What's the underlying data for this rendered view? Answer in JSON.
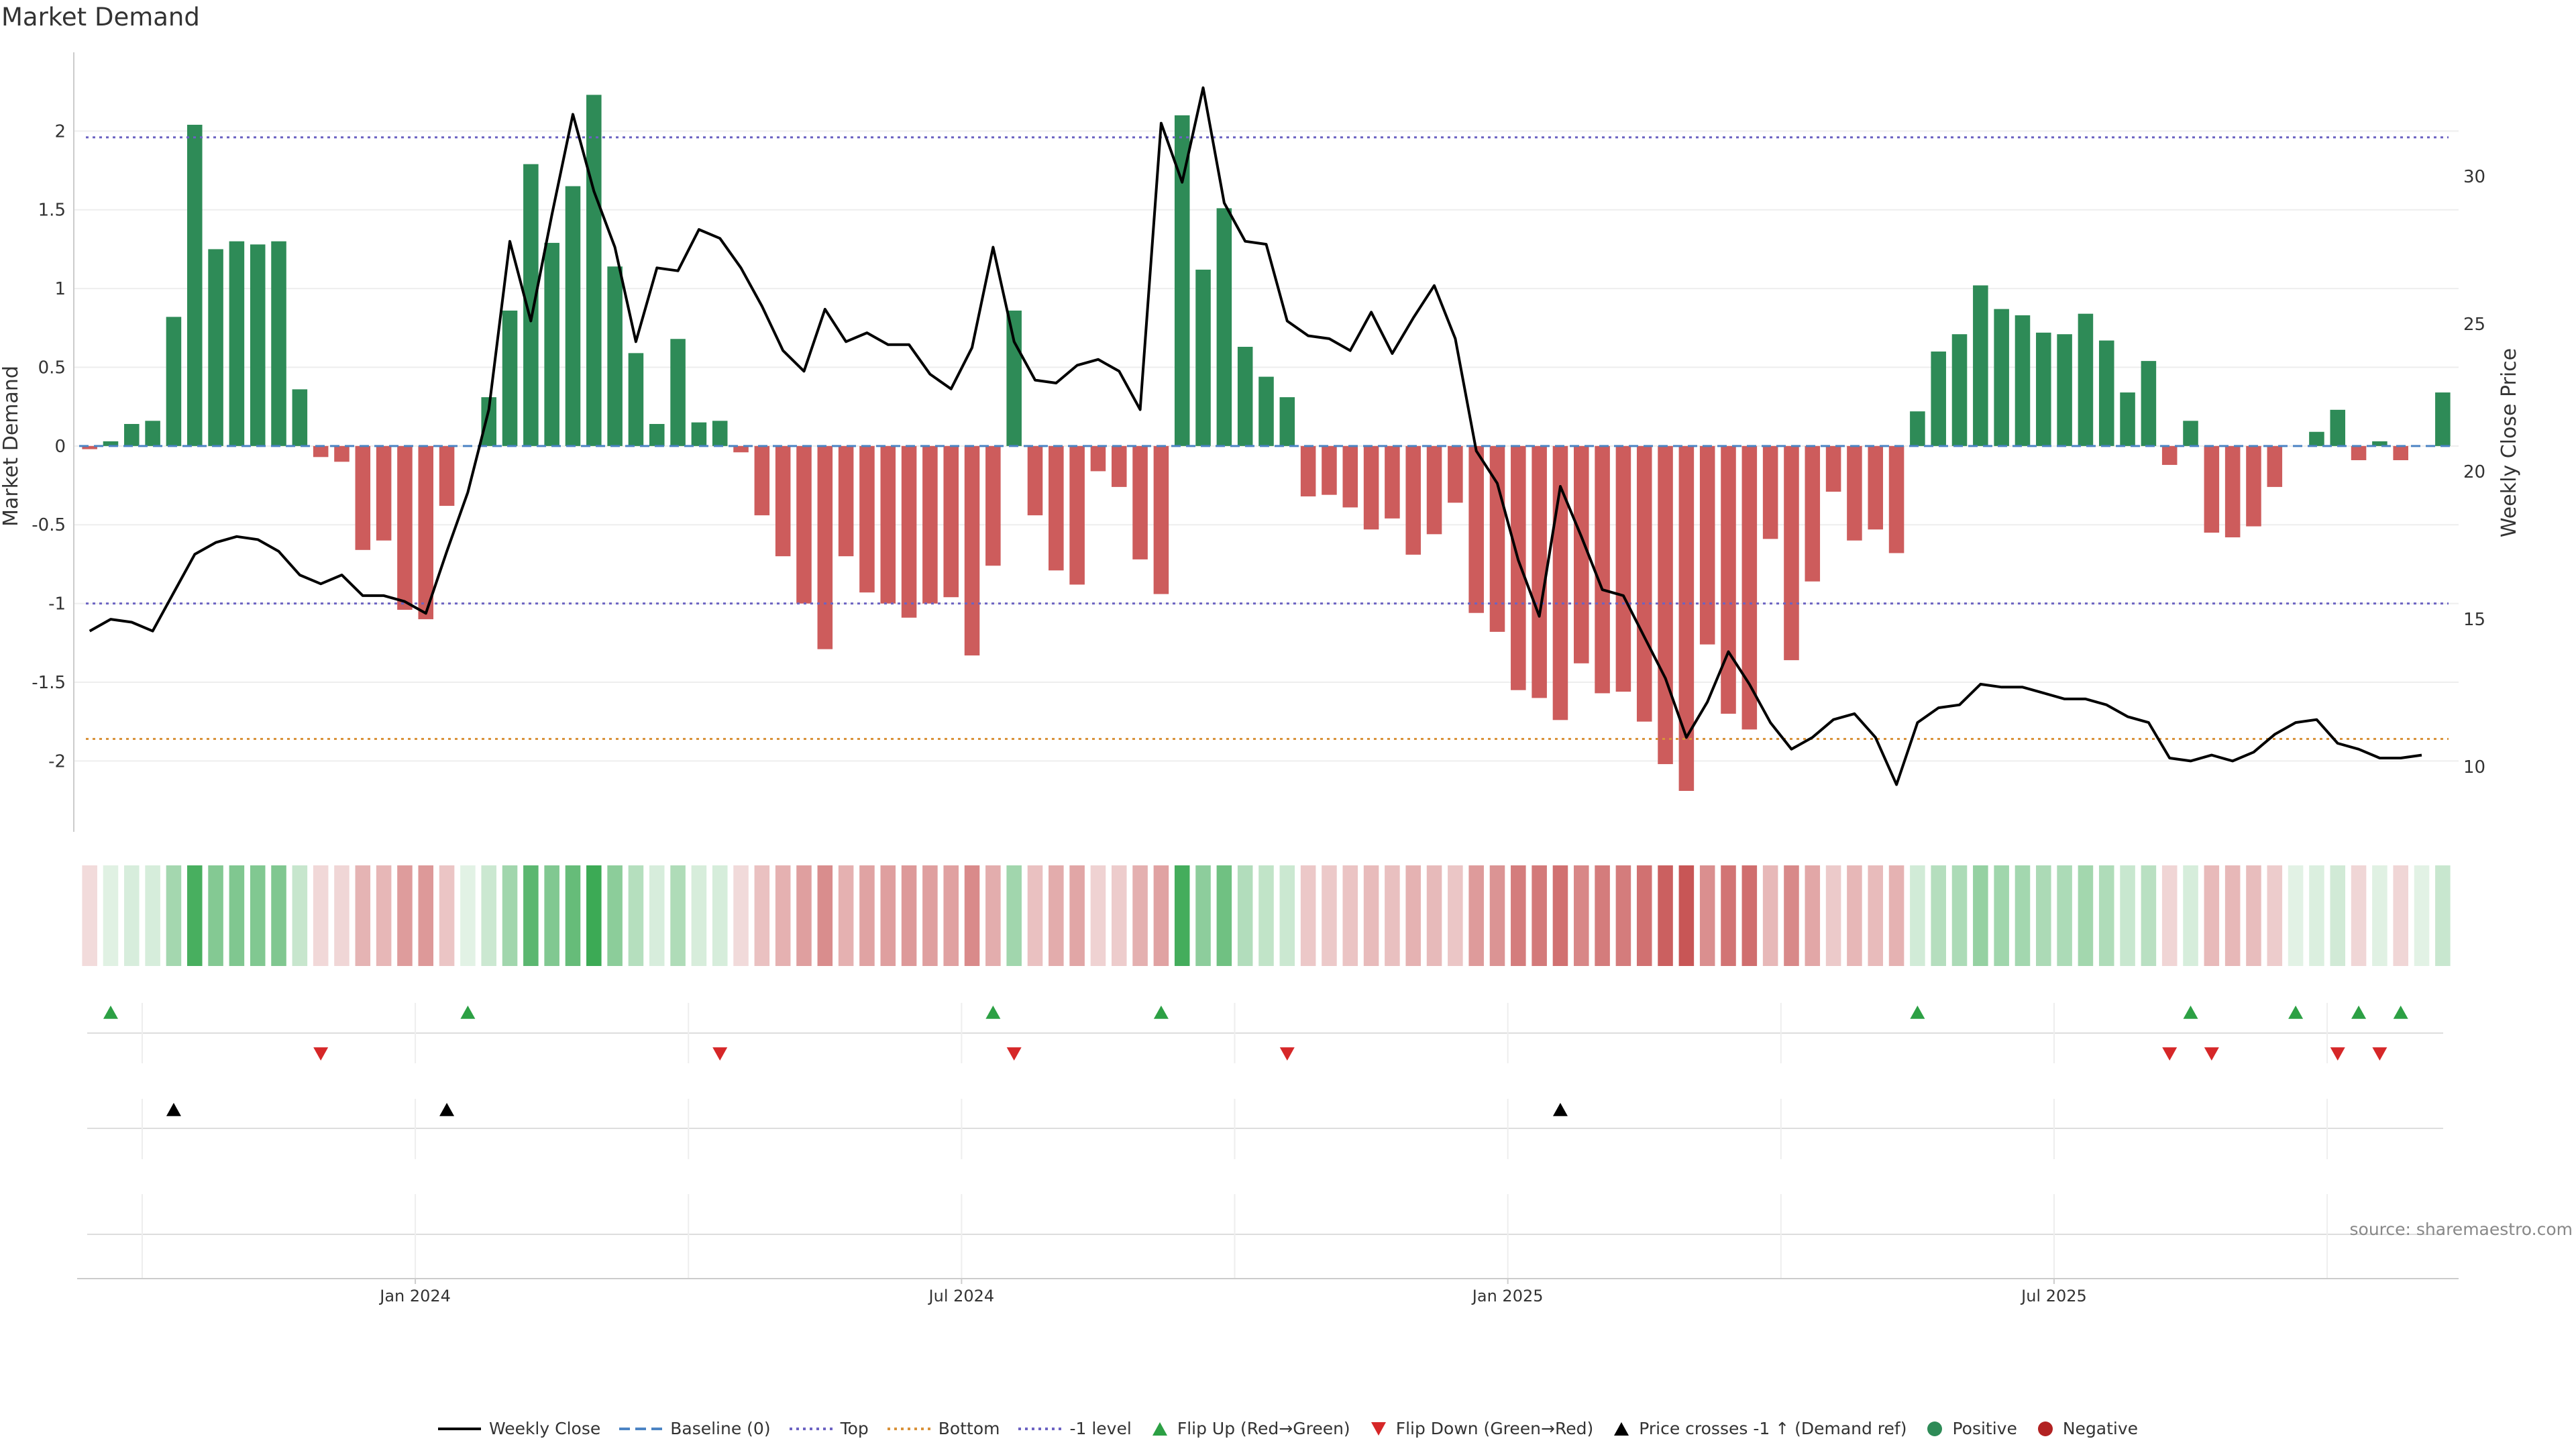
{
  "title": "Market Demand",
  "source": "source: sharemaestro.com",
  "colors": {
    "positive": "#2e8b57",
    "negative": "#cd5c5c",
    "price": "#000000",
    "top": "#6c63c2",
    "bottom": "#d9923a",
    "minus1": "#6c63c2",
    "baseline": "#4c84c4",
    "flip_up": "#2ca044",
    "flip_down": "#d62728",
    "cross": "#000000"
  },
  "legend": [
    {
      "label": "Weekly Close",
      "symbol": "line",
      "color": "#000000"
    },
    {
      "label": "Baseline (0)",
      "symbol": "dash",
      "color": "#4c84c4"
    },
    {
      "label": "Top",
      "symbol": "dot",
      "color": "#6c63c2"
    },
    {
      "label": "Bottom",
      "symbol": "dot",
      "color": "#d9923a"
    },
    {
      "label": "-1 level",
      "symbol": "dot",
      "color": "#6c63c2"
    },
    {
      "label": "Flip Up (Red→Green)",
      "symbol": "tri-up",
      "color": "#2ca044"
    },
    {
      "label": "Flip Down (Green→Red)",
      "symbol": "tri-down",
      "color": "#d62728"
    },
    {
      "label": "Price crosses -1 ↑ (Demand ref)",
      "symbol": "tri-up",
      "color": "#000000"
    },
    {
      "label": "Positive",
      "symbol": "circle",
      "color": "#2e8b57"
    },
    {
      "label": "Negative",
      "symbol": "circle",
      "color": "#b22222"
    }
  ],
  "chart_data": {
    "type": "bar",
    "title": "Market Demand",
    "ylabel": "Market Demand",
    "y2label": "Weekly Close Price",
    "ylim": [
      -2.45,
      2.5
    ],
    "y2lim": [
      7.8,
      34.2
    ],
    "yticks": [
      "2",
      "1.5",
      "1",
      "0.5",
      "0",
      "-0.5",
      "-1",
      "-1.5",
      "-2"
    ],
    "ytick_values": [
      2,
      1.5,
      1,
      0.5,
      0,
      -0.5,
      -1,
      -1.5,
      -2
    ],
    "y2ticks": [
      "30",
      "25",
      "20",
      "15",
      "10"
    ],
    "y2tick_values": [
      30,
      25,
      20,
      15,
      10
    ],
    "xticks": [
      "Jan 2024",
      "Jul 2024",
      "Jan 2025",
      "Jul 2025"
    ],
    "xtick_weeks": [
      16,
      42,
      68,
      94
    ],
    "grid_weeks": [
      3,
      16,
      29,
      42,
      55,
      68,
      81,
      94,
      107
    ],
    "reference_lines": {
      "top": 1.96,
      "bottom": -1.86,
      "minus1": -1.0,
      "baseline": 0
    },
    "demand": [
      -0.02,
      0.03,
      0.14,
      0.16,
      0.82,
      2.04,
      1.25,
      1.3,
      1.28,
      1.3,
      0.36,
      -0.07,
      -0.1,
      -0.66,
      -0.6,
      -1.04,
      -1.1,
      -0.38,
      0.0,
      0.31,
      0.86,
      1.79,
      1.29,
      1.65,
      2.23,
      1.14,
      0.59,
      0.14,
      0.68,
      0.15,
      0.16,
      -0.04,
      -0.44,
      -0.7,
      -1.0,
      -1.29,
      -0.7,
      -0.93,
      -1.0,
      -1.09,
      -1.0,
      -0.96,
      -1.33,
      -0.76,
      0.86,
      -0.44,
      -0.79,
      -0.88,
      -0.16,
      -0.26,
      -0.72,
      -0.94,
      2.1,
      1.12,
      1.51,
      0.63,
      0.44,
      0.31,
      -0.32,
      -0.31,
      -0.39,
      -0.53,
      -0.46,
      -0.69,
      -0.56,
      -0.36,
      -1.06,
      -1.18,
      -1.55,
      -1.6,
      -1.74,
      -1.38,
      -1.57,
      -1.56,
      -1.75,
      -2.02,
      -2.19,
      -1.26,
      -1.7,
      -1.8,
      -0.59,
      -1.36,
      -0.86,
      -0.29,
      -0.6,
      -0.53,
      -0.68,
      0.22,
      0.6,
      0.71,
      1.02,
      0.87,
      0.83,
      0.72,
      0.71,
      0.84,
      0.67,
      0.34,
      0.54,
      -0.12,
      0.16,
      -0.55,
      -0.58,
      -0.51,
      -0.26,
      0.0,
      0.09,
      0.23,
      -0.09,
      0.03,
      -0.09,
      0.0,
      0.34
    ],
    "price": [
      14.6,
      15.0,
      14.9,
      14.6,
      15.9,
      17.2,
      17.6,
      17.8,
      17.7,
      17.3,
      16.5,
      16.2,
      16.5,
      15.8,
      15.8,
      15.6,
      15.2,
      17.3,
      19.3,
      22.1,
      27.8,
      25.1,
      28.7,
      32.1,
      29.5,
      27.6,
      24.4,
      26.9,
      26.8,
      28.2,
      27.9,
      26.9,
      25.6,
      24.1,
      23.4,
      25.5,
      24.4,
      24.7,
      24.3,
      24.3,
      23.3,
      22.8,
      24.2,
      27.6,
      24.4,
      23.1,
      23.0,
      23.6,
      23.8,
      23.4,
      22.1,
      31.8,
      29.8,
      33.0,
      29.1,
      27.8,
      27.7,
      25.1,
      24.6,
      24.5,
      24.1,
      25.4,
      24.0,
      25.2,
      26.3,
      24.5,
      20.7,
      19.6,
      17.0,
      15.1,
      19.5,
      17.8,
      16.0,
      15.8,
      14.4,
      13.0,
      11.0,
      12.2,
      13.9,
      12.8,
      11.5,
      10.6,
      11.0,
      11.6,
      11.8,
      11.0,
      9.4,
      11.5,
      12.0,
      12.1,
      12.8,
      12.7,
      12.7,
      12.5,
      12.3,
      12.3,
      12.1,
      11.7,
      11.5,
      10.3,
      10.2,
      10.4,
      10.2,
      10.5,
      11.1,
      11.5,
      11.6,
      10.8,
      10.6,
      10.3,
      10.3,
      10.4
    ],
    "flip_up_weeks": [
      1,
      18,
      43,
      51,
      87,
      100,
      105,
      108,
      110
    ],
    "flip_down_weeks": [
      11,
      30,
      44,
      57,
      99,
      101,
      107,
      109
    ],
    "cross_up_weeks": [
      4,
      17,
      70
    ]
  }
}
